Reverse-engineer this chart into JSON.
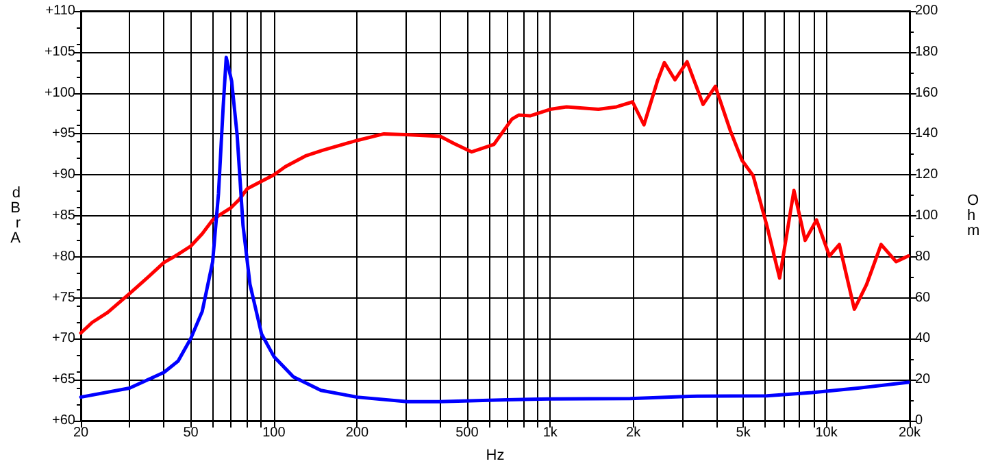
{
  "chart_data": {
    "type": "line",
    "xlabel": "Hz",
    "ylabel": "dBrA",
    "y2label": "Ohm",
    "log": "x",
    "grid": true,
    "marker": "none",
    "line_style": "solid",
    "xlim": [
      20,
      20000
    ],
    "xticks": [
      20,
      {
        "value": 30,
        "label": null
      },
      {
        "value": 40,
        "label": null
      },
      50,
      {
        "value": 60,
        "label": null
      },
      {
        "value": 70,
        "label": null
      },
      {
        "value": 80,
        "label": null
      },
      {
        "value": 90,
        "label": null
      },
      100,
      200,
      {
        "value": 300,
        "label": null
      },
      {
        "value": 400,
        "label": null
      },
      500,
      {
        "value": 600,
        "label": null
      },
      {
        "value": 700,
        "label": null
      },
      {
        "value": 800,
        "label": null
      },
      {
        "value": 900,
        "label": null
      },
      {
        "value": 1000,
        "label": "1k"
      },
      {
        "value": 2000,
        "label": "2k"
      },
      {
        "value": 3000,
        "label": null
      },
      {
        "value": 4000,
        "label": null
      },
      {
        "value": 5000,
        "label": "5k"
      },
      {
        "value": 6000,
        "label": null
      },
      {
        "value": 7000,
        "label": null
      },
      {
        "value": 8000,
        "label": null
      },
      {
        "value": 9000,
        "label": null
      },
      {
        "value": 10000,
        "label": "10k"
      },
      {
        "value": 20000,
        "label": "20k"
      }
    ],
    "ylim": [
      60,
      110
    ],
    "yticks": [
      {
        "value": 60,
        "label": "+60"
      },
      {
        "value": 65,
        "label": "+65"
      },
      {
        "value": 70,
        "label": "+70"
      },
      {
        "value": 75,
        "label": "+75"
      },
      {
        "value": 80,
        "label": "+80"
      },
      {
        "value": 85,
        "label": "+85"
      },
      {
        "value": 90,
        "label": "+90"
      },
      {
        "value": 95,
        "label": "+95"
      },
      {
        "value": 100,
        "label": "+100"
      },
      {
        "value": 105,
        "label": "+105"
      },
      {
        "value": 110,
        "label": "+110"
      }
    ],
    "y2lim": [
      0,
      200
    ],
    "y2ticks": [
      0,
      20,
      40,
      60,
      80,
      100,
      120,
      140,
      160,
      180,
      200
    ],
    "series": [
      {
        "color": "#ff0000",
        "x": [
          20,
          22,
          25,
          30,
          35,
          40,
          45,
          50,
          55,
          60,
          65,
          70,
          75,
          80,
          90,
          100,
          110,
          130,
          150,
          200,
          250,
          300,
          400,
          450,
          520,
          625,
          727,
          770,
          846,
          1000,
          1146,
          1495,
          1739,
          1987,
          2185,
          2447,
          2590,
          2830,
          3130,
          3576,
          3961,
          4488,
          4942,
          5430,
          6087,
          6770,
          7628,
          8375,
          9210,
          10254,
          11135,
          12621,
          13970,
          15770,
          17870,
          19800
        ],
        "values": [
          70.7,
          72,
          73.2,
          75.5,
          77.5,
          79.3,
          80.3,
          81.3,
          82.8,
          84.5,
          85.3,
          86,
          87,
          88.3,
          89.2,
          90,
          91,
          92.3,
          93,
          94.2,
          95,
          94.9,
          94.7,
          93.8,
          92.8,
          93.7,
          96.8,
          97.3,
          97.2,
          98,
          98.3,
          98,
          98.3,
          98.9,
          96.1,
          101.5,
          103.7,
          101.6,
          103.8,
          98.6,
          100.8,
          95.4,
          91.8,
          89.9,
          83.8,
          77.4,
          88.1,
          82,
          84.5,
          80.1,
          81.5,
          73.6,
          76.6,
          81.5,
          79.4,
          80.1
        ]
      },
      {
        "color": "#0000ff",
        "axis": "y2",
        "x": [
          20,
          30,
          40,
          45,
          50,
          55,
          60,
          63,
          65.5,
          67.2,
          70.3,
          73.6,
          77.3,
          81.9,
          90.2,
          100,
          117.6,
          148,
          200,
          304,
          397,
          700,
          1000,
          1950,
          3190,
          6087,
          8870,
          13000,
          19800
        ],
        "values": [
          11.5,
          15.9,
          23.6,
          29.1,
          40.1,
          53.3,
          77.5,
          110.7,
          153,
          177.3,
          165.8,
          139.4,
          95.3,
          66.6,
          42.3,
          31.3,
          21.4,
          14.8,
          11.5,
          9.3,
          9.3,
          10.2,
          10.6,
          10.8,
          11.9,
          12.1,
          13.7,
          15.9,
          18.7
        ]
      }
    ]
  }
}
